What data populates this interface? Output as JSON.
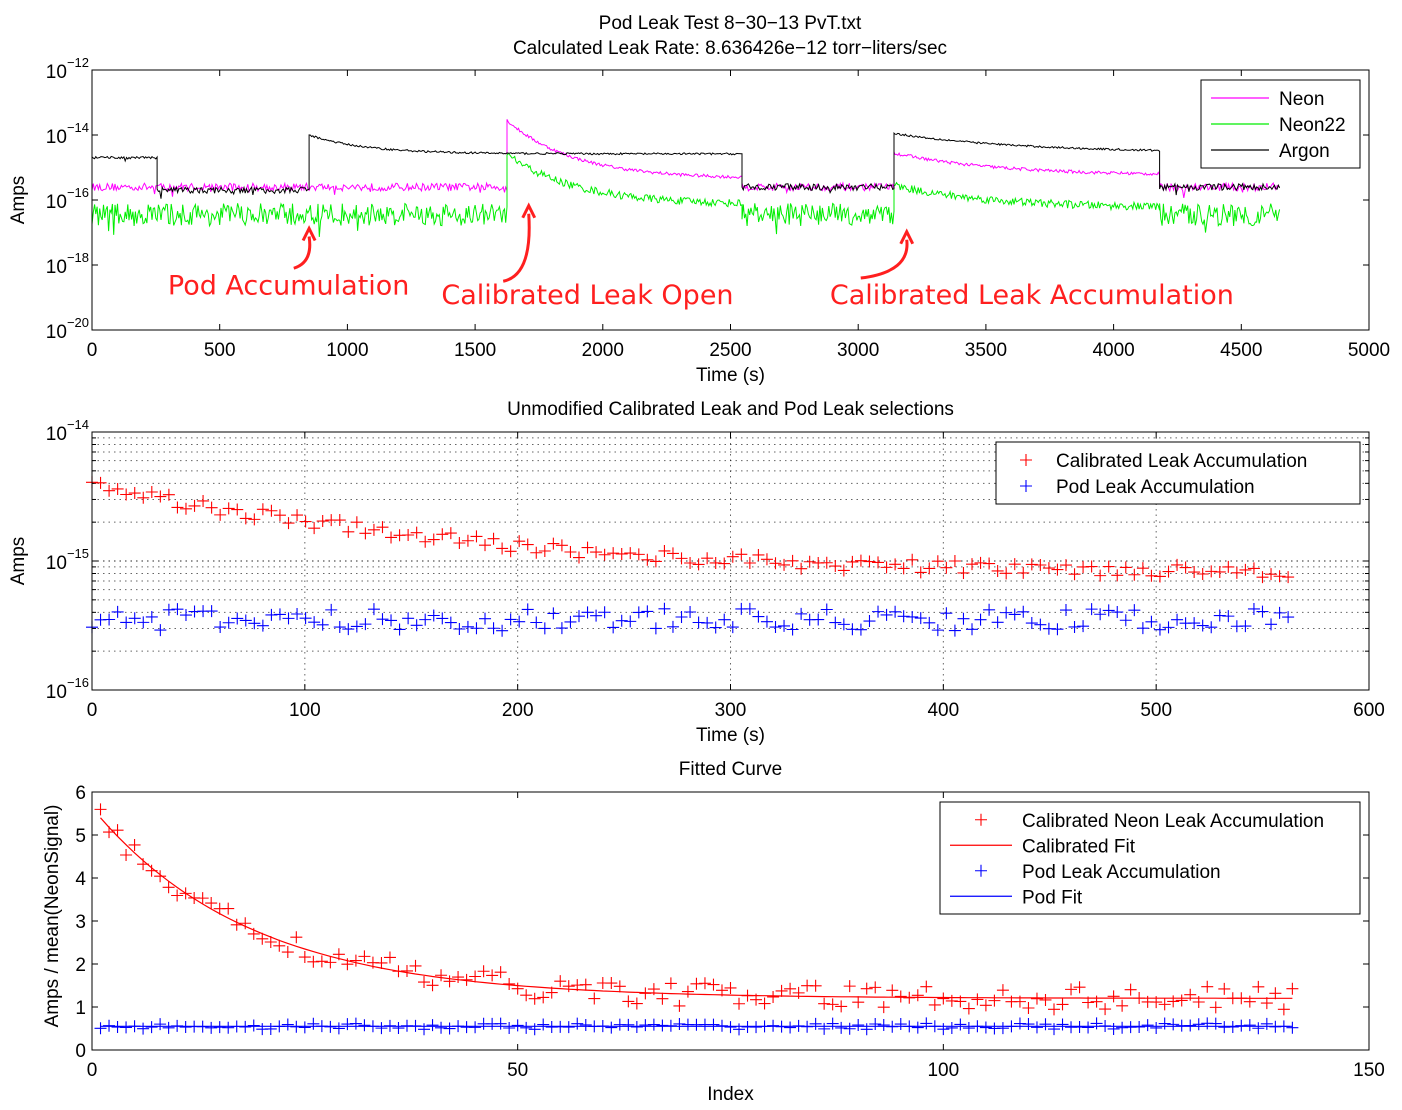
{
  "figure": {
    "title_line1": "Pod Leak Test 8−30−13 PvT.txt",
    "title_line2": "Calculated Leak Rate: 8.636426e−12 torr−liters/sec"
  },
  "chart_data": [
    {
      "type": "line",
      "title": "",
      "xlabel": "Time (s)",
      "ylabel": "Amps",
      "y_scale": "log",
      "xlim": [
        0,
        5000
      ],
      "ylim": [
        1e-20,
        1e-12
      ],
      "x_ticks": [
        "0",
        "500",
        "1000",
        "1500",
        "2000",
        "2500",
        "3000",
        "3500",
        "4000",
        "4500",
        "5000"
      ],
      "y_ticks": [
        {
          "value": -12,
          "base": "10",
          "exp": "−12"
        },
        {
          "value": -14,
          "base": "10",
          "exp": "−14"
        },
        {
          "value": -16,
          "base": "10",
          "exp": "−16"
        },
        {
          "value": -18,
          "base": "10",
          "exp": "−18"
        },
        {
          "value": -20,
          "base": "10",
          "exp": "−20"
        }
      ],
      "legend_position": "top-right",
      "series": [
        {
          "name": "Neon",
          "color": "#ff00ff",
          "segments": [
            {
              "type": "noise",
              "x0": 0,
              "x1": 1625,
              "y": -15.6,
              "amp": 0.12
            },
            {
              "type": "decay",
              "x0": 1625,
              "x1": 2545,
              "peak": -13.55,
              "base": -15.35,
              "tau": 260,
              "amp": 0.05
            },
            {
              "type": "noise",
              "x0": 2545,
              "x1": 3140,
              "y": -15.6,
              "amp": 0.12
            },
            {
              "type": "decay",
              "x0": 3140,
              "x1": 4180,
              "peak": -14.55,
              "base": -15.25,
              "tau": 400,
              "amp": 0.05
            },
            {
              "type": "noise",
              "x0": 4180,
              "x1": 4650,
              "y": -15.6,
              "amp": 0.12
            }
          ]
        },
        {
          "name": "Neon22",
          "color": "#00ee00",
          "segments": [
            {
              "type": "noise",
              "x0": 0,
              "x1": 1625,
              "y": -16.45,
              "amp": 0.35
            },
            {
              "type": "decay",
              "x0": 1625,
              "x1": 2545,
              "peak": -14.6,
              "base": -16.15,
              "tau": 270,
              "amp": 0.12
            },
            {
              "type": "noise",
              "x0": 2545,
              "x1": 3140,
              "y": -16.45,
              "amp": 0.35
            },
            {
              "type": "decay",
              "x0": 3140,
              "x1": 4180,
              "peak": -15.55,
              "base": -16.25,
              "tau": 380,
              "amp": 0.12
            },
            {
              "type": "noise",
              "x0": 4180,
              "x1": 4650,
              "y": -16.45,
              "amp": 0.35
            }
          ]
        },
        {
          "name": "Argon",
          "color": "#000000",
          "segments": [
            {
              "type": "noise",
              "x0": 0,
              "x1": 255,
              "y": -14.7,
              "amp": 0.04
            },
            {
              "type": "noise",
              "x0": 255,
              "x1": 850,
              "y": -15.7,
              "amp": 0.1
            },
            {
              "type": "decay",
              "x0": 850,
              "x1": 2545,
              "peak": -14.0,
              "base": -14.58,
              "tau": 220,
              "amp": 0.03
            },
            {
              "type": "noise",
              "x0": 2545,
              "x1": 3140,
              "y": -15.6,
              "amp": 0.1
            },
            {
              "type": "decay",
              "x0": 3140,
              "x1": 4180,
              "peak": -13.95,
              "base": -14.55,
              "tau": 500,
              "amp": 0.03
            },
            {
              "type": "noise",
              "x0": 4180,
              "x1": 4650,
              "y": -15.6,
              "amp": 0.1
            }
          ]
        }
      ],
      "annotations": [
        {
          "text": "Pod Accumulation",
          "x": 770,
          "y": -18.9,
          "arrow_from": [
            790,
            -18.1
          ],
          "arrow_to": [
            850,
            -17.0
          ]
        },
        {
          "text": "Calibrated Leak Open",
          "x": 1940,
          "y": -19.2,
          "arrow_from": [
            1610,
            -18.5
          ],
          "arrow_to": [
            1710,
            -16.3
          ]
        },
        {
          "text": "Calibrated Leak Accumulation",
          "x": 3680,
          "y": -19.2,
          "arrow_from": [
            3010,
            -18.4
          ],
          "arrow_to": [
            3190,
            -17.1
          ]
        }
      ],
      "annotation_color": "#ff1f1f"
    },
    {
      "type": "scatter",
      "title": "Unmodified Calibrated Leak and Pod Leak selections",
      "xlabel": "Time (s)",
      "ylabel": "Amps",
      "y_scale": "log",
      "xlim": [
        0,
        600
      ],
      "ylim": [
        1e-16,
        1e-14
      ],
      "grid": true,
      "x_ticks": [
        "0",
        "100",
        "200",
        "300",
        "400",
        "500",
        "600"
      ],
      "y_ticks": [
        {
          "value": -14,
          "base": "10",
          "exp": "−14"
        },
        {
          "value": -15,
          "base": "10",
          "exp": "−15"
        },
        {
          "value": -16,
          "base": "10",
          "exp": "−16"
        }
      ],
      "legend_position": "top-right",
      "x_range": [
        0,
        562
      ],
      "n_points": 141,
      "series": [
        {
          "name": "Calibrated Leak Accumulation",
          "color": "#ff0000",
          "marker": "+",
          "model": {
            "type": "exp",
            "a": 3e-15,
            "b": 8.2e-16,
            "tau": 110,
            "spread": 0.12
          }
        },
        {
          "name": "Pod Leak Accumulation",
          "color": "#0000ff",
          "marker": "+",
          "model": {
            "type": "flat",
            "a": 0,
            "b": 3.5e-16,
            "tau": 1,
            "spread": 0.2
          }
        }
      ]
    },
    {
      "type": "scatter",
      "title": "Fitted Curve",
      "xlabel": "Index",
      "ylabel": "Amps / mean(NeonSignal)",
      "y_scale": "linear",
      "xlim": [
        0,
        150
      ],
      "ylim": [
        0,
        6
      ],
      "x_ticks": [
        "0",
        "50",
        "100",
        "150"
      ],
      "y_ticks": [
        "0",
        "1",
        "2",
        "3",
        "4",
        "5",
        "6"
      ],
      "legend_position": "top-right",
      "x_range": [
        1,
        141
      ],
      "series": [
        {
          "name": "Calibrated Neon Leak Accumulation",
          "color": "#ff0000",
          "marker": "+",
          "model": {
            "type": "exp",
            "a": 4.2,
            "b": 1.2,
            "tau": 18.5,
            "spread": 0.22
          }
        },
        {
          "name": "Calibrated Fit",
          "color": "#ff0000",
          "marker": "line",
          "model": {
            "type": "exp",
            "a": 4.2,
            "b": 1.2,
            "tau": 18.5
          }
        },
        {
          "name": "Pod Leak Accumulation",
          "color": "#0000ff",
          "marker": "+",
          "model": {
            "type": "flat",
            "a": 0,
            "b": 0.55,
            "tau": 1,
            "spread": 0.07
          }
        },
        {
          "name": "Pod Fit",
          "color": "#0000ff",
          "marker": "line",
          "model": {
            "type": "flat",
            "a": 0,
            "b": 0.55,
            "tau": 1
          }
        }
      ]
    }
  ]
}
